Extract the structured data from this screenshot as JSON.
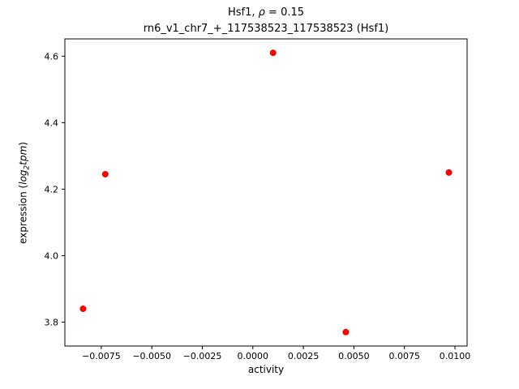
{
  "figure": {
    "title": {
      "pre": "Hsf1, ",
      "rho": "ρ",
      "post": " = 0.15"
    },
    "subtitle": "rn6_v1_chr7_+_117538523_117538523 (Hsf1)",
    "xlabel": "activity",
    "ylabel": {
      "pre": "expression (",
      "log": "log",
      "sub": "2",
      "tpm": "tpm",
      "post": ")"
    }
  },
  "chart_data": {
    "type": "scatter",
    "title": "Hsf1, ρ = 0.15",
    "subtitle": "rn6_v1_chr7_+_117538523_117538523 (Hsf1)",
    "xlabel": "activity",
    "ylabel": "expression (log2 tpm)",
    "xlim": [
      -0.0093,
      0.0106
    ],
    "ylim": [
      3.728,
      4.652
    ],
    "xticks": [
      -0.0075,
      -0.005,
      -0.0025,
      0.0,
      0.0025,
      0.005,
      0.0075,
      0.01
    ],
    "yticks": [
      3.8,
      4.0,
      4.2,
      4.4,
      4.6
    ],
    "x": [
      -0.0084,
      -0.0073,
      0.001,
      0.0046,
      0.0097
    ],
    "y": [
      3.84,
      4.245,
      4.61,
      3.77,
      4.25
    ],
    "marker": {
      "color": "#ff0000",
      "radius": 4
    },
    "grid": false,
    "legend": "none",
    "background": "#ffffff"
  }
}
